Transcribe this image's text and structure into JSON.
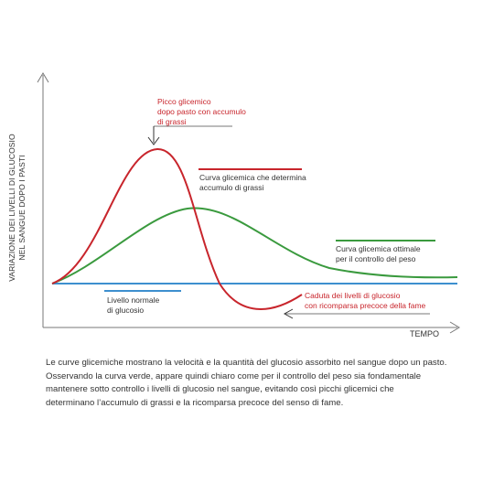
{
  "chart_data": {
    "type": "line",
    "title": "",
    "ylabel_lines": [
      "VARIAZIONE DEI LIVELLI DI GLUCOSIO",
      "NEL SANGUE DOPO I PASTI"
    ],
    "xlabel": "TEMPO",
    "grid": false,
    "series": [
      {
        "key": "red",
        "color": "#c8252c"
      },
      {
        "key": "green",
        "color": "#3a9a3e"
      },
      {
        "key": "blue",
        "color": "#3d8fcf"
      }
    ],
    "annotations": {
      "peak": [
        "Picco glicemico",
        "dopo pasto con accumulo",
        "di grassi"
      ],
      "red_curve": [
        "Curva glicemica che determina",
        "accumulo di grassi"
      ],
      "green_curve": [
        "Curva glicemica ottimale",
        "per il controllo del peso"
      ],
      "normal": [
        "Livello normale",
        "di glucosio"
      ],
      "drop": [
        "Caduta dei livelli di glucosio",
        "con ricomparsa precoce della fame"
      ]
    }
  },
  "caption": [
    "Le curve glicemiche mostrano la velocità e la quantità del glucosio assorbito nel sangue dopo un pasto.",
    "Osservando la curva verde, appare quindi chiaro come per il controllo del peso sia fondamentale",
    "mantenere sotto controllo i livelli di glucosio nel sangue, evitando così picchi glicemici che",
    "determinano l’accumulo di grassi e la ricomparsa precoce del senso di fame."
  ]
}
